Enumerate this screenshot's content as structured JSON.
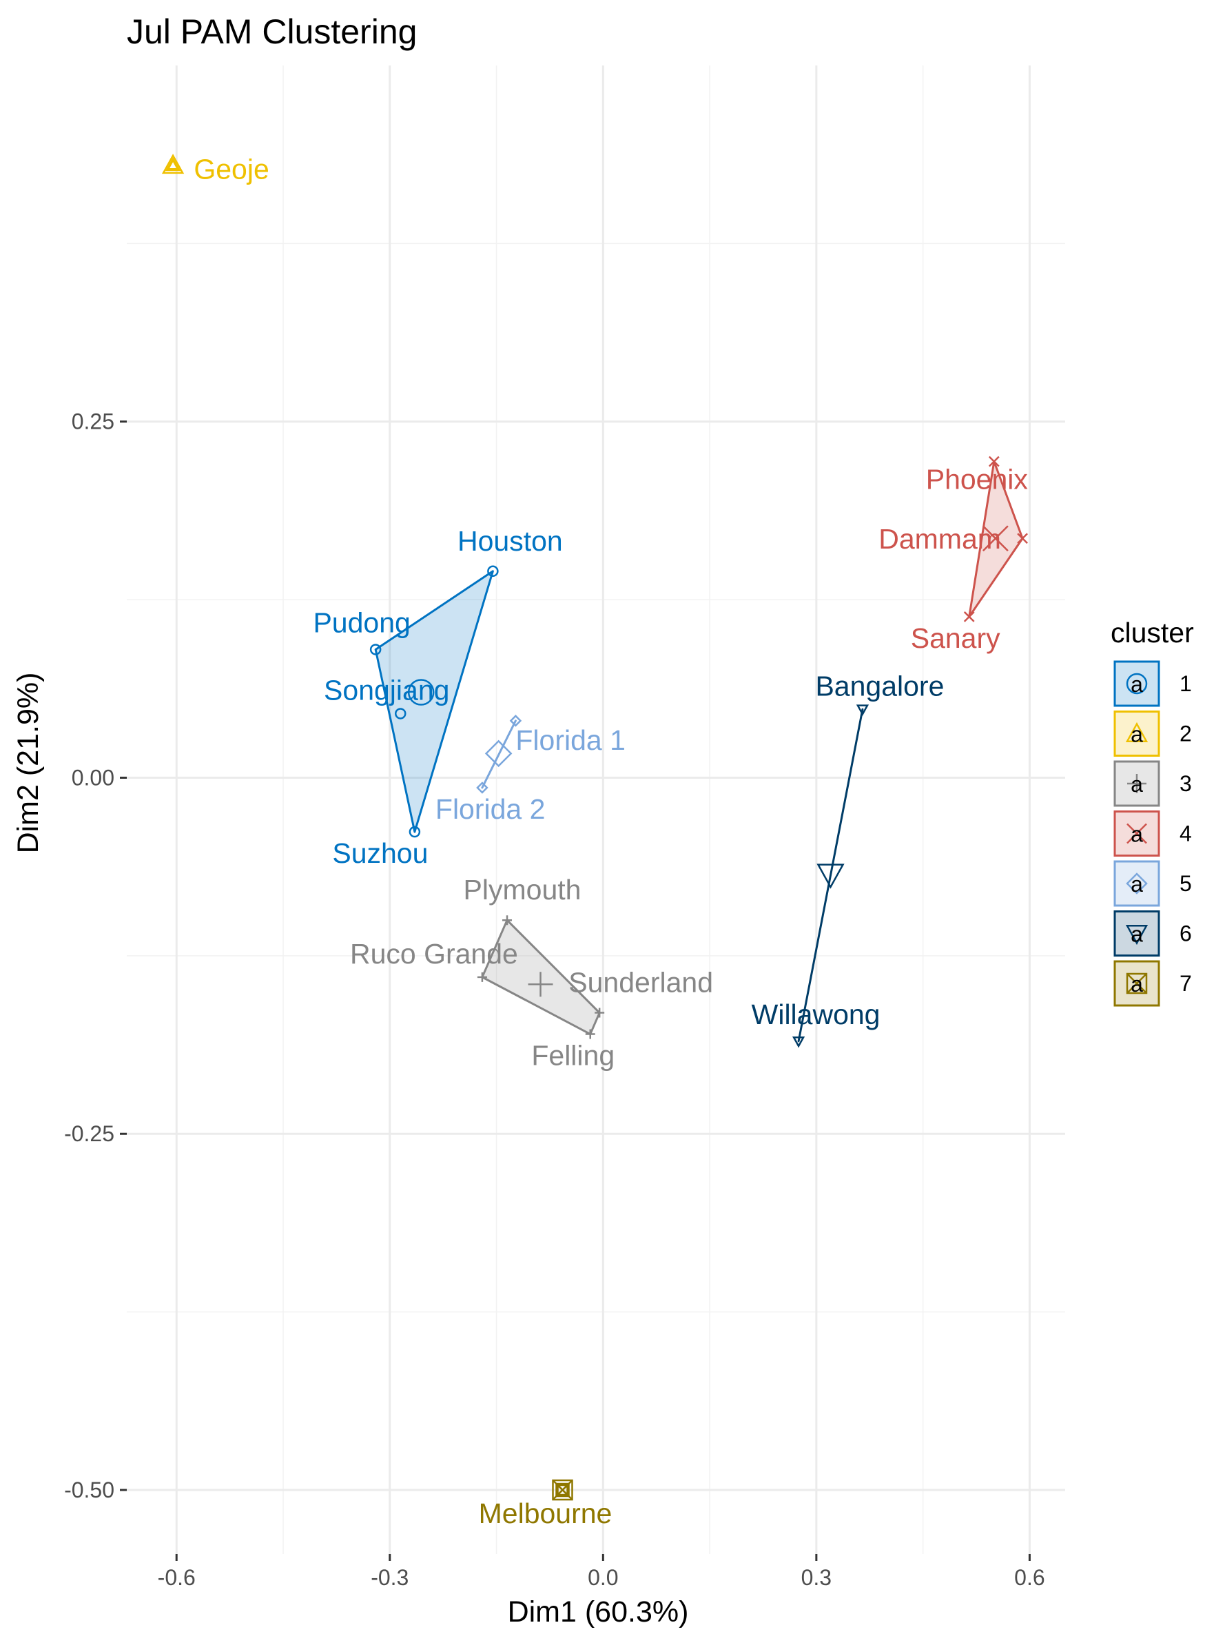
{
  "chart_data": {
    "type": "scatter",
    "title": "Jul PAM Clustering",
    "xlabel": "Dim1 (60.3%)",
    "ylabel": "Dim2 (21.9%)",
    "xlim": [
      -0.67,
      0.65
    ],
    "ylim": [
      -0.545,
      0.5
    ],
    "x_ticks": [
      -0.6,
      -0.3,
      0.0,
      0.3,
      0.6
    ],
    "x_tick_labels": [
      "-0.6",
      "-0.3",
      "0.0",
      "0.3",
      "0.6"
    ],
    "y_ticks": [
      -0.5,
      -0.25,
      0.0,
      0.25
    ],
    "y_tick_labels": [
      "-0.50",
      "-0.25",
      "0.00",
      "0.25"
    ],
    "grid": true,
    "legend": {
      "title": "cluster",
      "position": "right",
      "entries": [
        "1",
        "2",
        "3",
        "4",
        "5",
        "6",
        "7"
      ]
    },
    "clusters": [
      {
        "name": "1",
        "color": "#0073C2",
        "shape": "circle",
        "points": [
          {
            "label": "Houston",
            "x": -0.155,
            "y": 0.145
          },
          {
            "label": "Pudong",
            "x": -0.32,
            "y": 0.09
          },
          {
            "label": "Songjiang",
            "x": -0.285,
            "y": 0.045
          },
          {
            "label": "Suzhou",
            "x": -0.265,
            "y": -0.038
          }
        ],
        "center": {
          "x": -0.256,
          "y": 0.06
        }
      },
      {
        "name": "2",
        "color": "#EFC000",
        "shape": "triangle",
        "points": [
          {
            "label": "Geoje",
            "x": -0.605,
            "y": 0.43
          }
        ],
        "center": {
          "x": -0.605,
          "y": 0.43
        }
      },
      {
        "name": "3",
        "color": "#868686",
        "shape": "plus",
        "points": [
          {
            "label": "Plymouth",
            "x": -0.135,
            "y": -0.1
          },
          {
            "label": "Ruco Grande",
            "x": -0.17,
            "y": -0.14
          },
          {
            "label": "Sunderland",
            "x": -0.005,
            "y": -0.165
          },
          {
            "label": "Felling",
            "x": -0.018,
            "y": -0.18
          }
        ],
        "center": {
          "x": -0.088,
          "y": -0.145
        }
      },
      {
        "name": "4",
        "color": "#CD534C",
        "shape": "cross",
        "points": [
          {
            "label": "Phoenix",
            "x": 0.55,
            "y": 0.222
          },
          {
            "label": "Dammam",
            "x": 0.59,
            "y": 0.168
          },
          {
            "label": "Sanary",
            "x": 0.515,
            "y": 0.113
          }
        ],
        "center": {
          "x": 0.552,
          "y": 0.168
        }
      },
      {
        "name": "5",
        "color": "#7AA6DC",
        "shape": "diamond",
        "points": [
          {
            "label": "Florida 1",
            "x": -0.123,
            "y": 0.04
          },
          {
            "label": "Florida 2",
            "x": -0.17,
            "y": -0.007
          }
        ],
        "center": {
          "x": -0.147,
          "y": 0.017
        }
      },
      {
        "name": "6",
        "color": "#003C67",
        "shape": "triangle-down",
        "points": [
          {
            "label": "Bangalore",
            "x": 0.365,
            "y": 0.048
          },
          {
            "label": "Willawong",
            "x": 0.275,
            "y": -0.185
          }
        ],
        "center": {
          "x": 0.32,
          "y": -0.068
        }
      },
      {
        "name": "7",
        "color": "#8F7700",
        "shape": "square-cross",
        "points": [
          {
            "label": "Melbourne",
            "x": -0.057,
            "y": -0.5
          }
        ],
        "center": {
          "x": -0.057,
          "y": -0.5
        }
      }
    ]
  }
}
